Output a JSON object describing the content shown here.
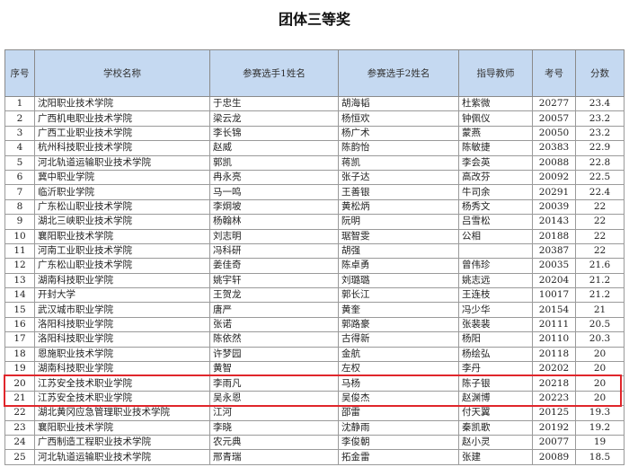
{
  "title": "团体三等奖",
  "headers": [
    "序号",
    "学校名称",
    "参赛选手1姓名",
    "参赛选手2姓名",
    "指导教师",
    "考号",
    "分数"
  ],
  "highlight_color": "#e0262b",
  "header_bg": "#c5d9f1",
  "rows": [
    [
      "1",
      "沈阳职业技术学院",
      "于忠生",
      "胡海韬",
      "杜紫微",
      "20277",
      "23.4"
    ],
    [
      "2",
      "广西机电职业技术学院",
      "梁云龙",
      "杨恒欢",
      "钟佩仪",
      "20057",
      "23.2"
    ],
    [
      "3",
      "广西工业职业技术学院",
      "李长锦",
      "杨广术",
      "蒙燕",
      "20050",
      "23.2"
    ],
    [
      "4",
      "杭州科技职业技术学院",
      "赵威",
      "陈韵怡",
      "陈敏捷",
      "20383",
      "22.9"
    ],
    [
      "5",
      "河北轨道运输职业技术学院",
      "郭凯",
      "蒋凯",
      "李会英",
      "20088",
      "22.8"
    ],
    [
      "6",
      "冀中职业学院",
      "冉永亮",
      "张子达",
      "高改芬",
      "20092",
      "22.5"
    ],
    [
      "7",
      "临沂职业学院",
      "马一鸣",
      "王善银",
      "牛司余",
      "20291",
      "22.4"
    ],
    [
      "8",
      "广东松山职业技术学院",
      "李炯坡",
      "黄松炳",
      "杨秀文",
      "20039",
      "22"
    ],
    [
      "9",
      "湖北三峡职业技术学院",
      "杨翰林",
      "阮明",
      "吕雪松",
      "20143",
      "22"
    ],
    [
      "10",
      "襄阳职业技术学院",
      "刘志明",
      "琚智雯",
      "公相",
      "20188",
      "22"
    ],
    [
      "11",
      "河南工业职业技术学院",
      "冯科研",
      "胡强",
      "",
      "20387",
      "22"
    ],
    [
      "12",
      "广东松山职业技术学院",
      "姜佳奇",
      "陈卓勇",
      "曾伟珍",
      "20035",
      "21.6"
    ],
    [
      "13",
      "湖南科技职业学院",
      "姚宇轩",
      "刘璐璐",
      "姚志远",
      "20204",
      "21.2"
    ],
    [
      "14",
      "开封大学",
      "王贺龙",
      "郭长江",
      "王连枝",
      "10017",
      "21.2"
    ],
    [
      "15",
      "武汉城市职业学院",
      "唐严",
      "黄奎",
      "冯少华",
      "20154",
      "21"
    ],
    [
      "16",
      "洛阳科技职业学院",
      "张诺",
      "郭路豪",
      "张裴裴",
      "20111",
      "20.5"
    ],
    [
      "17",
      "洛阳科技职业学院",
      "陈依然",
      "古得新",
      "杨阳",
      "20110",
      "20.3"
    ],
    [
      "18",
      "恩施职业技术学院",
      "许梦园",
      "金航",
      "杨绘弘",
      "20118",
      "20"
    ],
    [
      "19",
      "湖南科技职业学院",
      "黄智",
      "左权",
      "李丹",
      "20202",
      "20"
    ],
    [
      "20",
      "江苏安全技术职业学院",
      "李雨凡",
      "马杨",
      "陈子银",
      "20218",
      "20"
    ],
    [
      "21",
      "江苏安全技术职业学院",
      "吴永恩",
      "吴俊杰",
      "赵渊博",
      "20223",
      "20"
    ],
    [
      "22",
      "湖北黄冈应急管理职业技术学院",
      "江河",
      "邵雷",
      "付天翼",
      "20125",
      "19.3"
    ],
    [
      "23",
      "襄阳职业技术学院",
      "李晓",
      "沈静雨",
      "秦凯歌",
      "20192",
      "19.2"
    ],
    [
      "24",
      "广西制造工程职业技术学院",
      "农元典",
      "李俊朝",
      "赵小灵",
      "20077",
      "19"
    ],
    [
      "25",
      "河北轨道运输职业技术学院",
      "邢青瑞",
      "拓金雷",
      "张建",
      "20089",
      "18.5"
    ]
  ]
}
